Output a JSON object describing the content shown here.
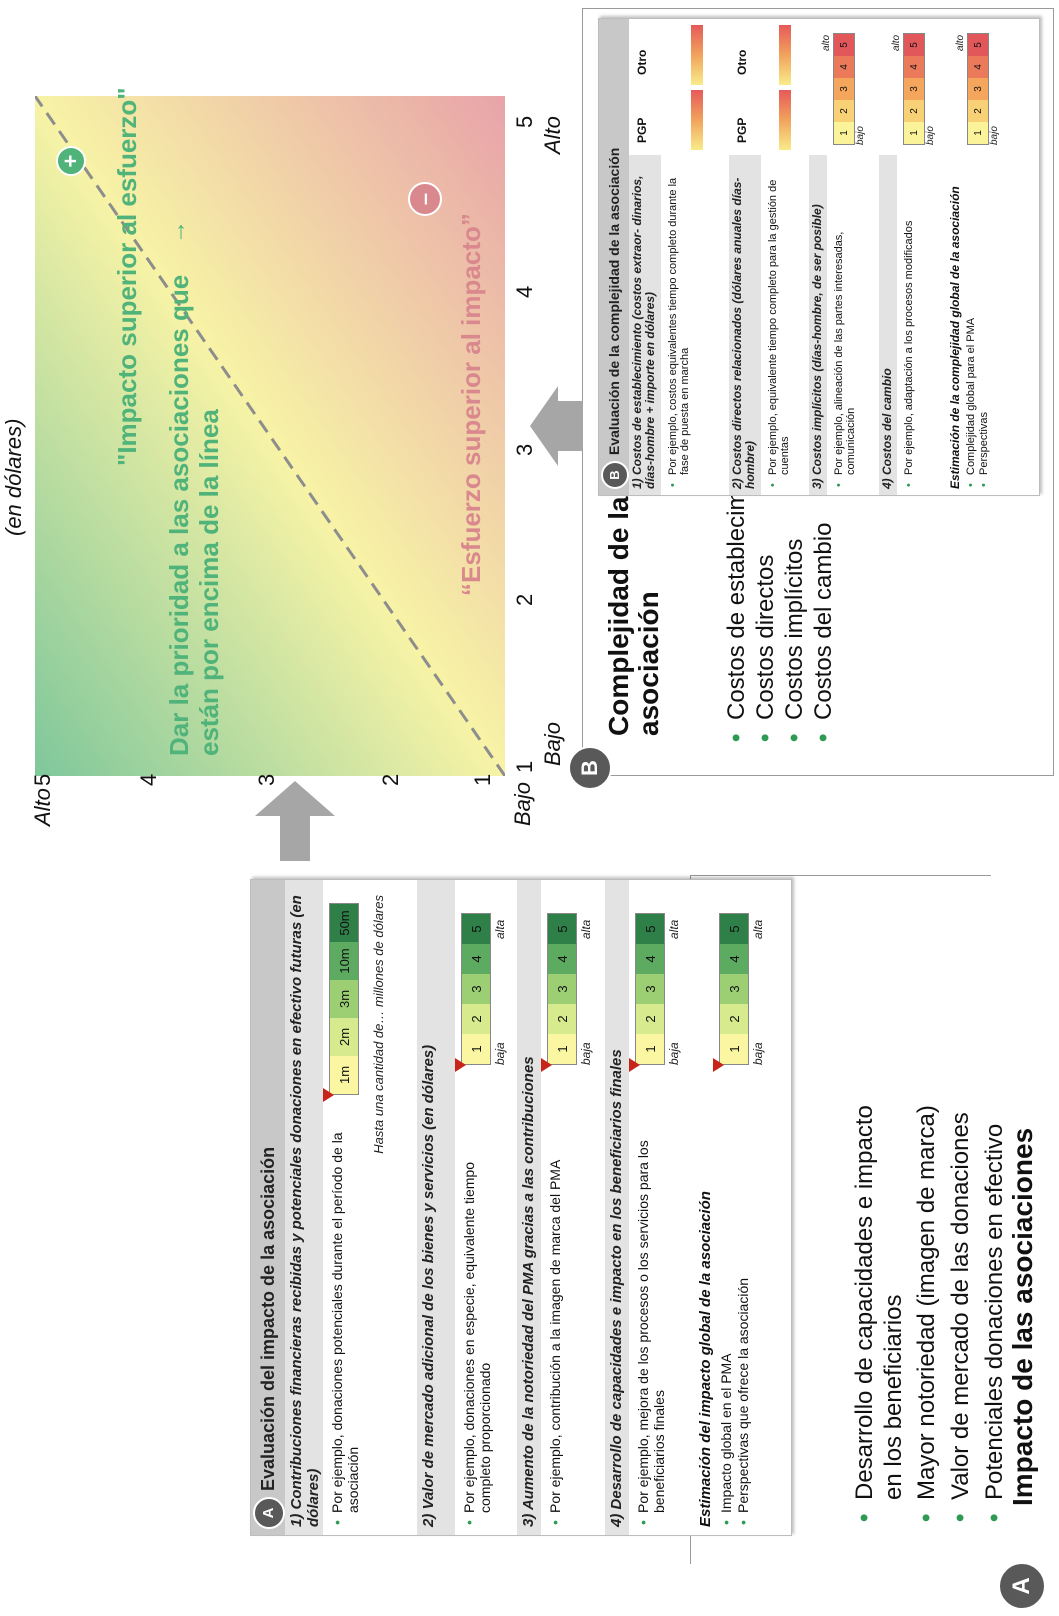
{
  "panel_a": {
    "badge": "A",
    "title": "Impacto de las asociaciones",
    "bullets": [
      "Potenciales donaciones en efectivo",
      "Valor de mercado de las donaciones",
      "Mayor notoriedad (imagen de marca)",
      "Desarrollo de capacidades e impacto en los beneficiarios"
    ],
    "card": {
      "badge": "A",
      "title": "Evaluación del impacto de la asociación",
      "sections": [
        {
          "heading": "1) Contribuciones financieras recibidas y potenciales donaciones en efectivo futuras (en dólares)",
          "bullet": "Por ejemplo, donaciones potenciales durante el período de la asociación",
          "note": "Hasta una cantidad de… millones de dólares",
          "scale": [
            "1m",
            "2m",
            "3m",
            "10m",
            "50m"
          ]
        },
        {
          "heading": "2) Valor de mercado adicional de los bienes y servicios (en dólares)",
          "bullet": "Por ejemplo, donaciones en especie, equivalente tiempo completo proporcionado",
          "scale_low": "baja",
          "scale_high": "alta",
          "scale": [
            "1",
            "2",
            "3",
            "4",
            "5"
          ]
        },
        {
          "heading": "3) Aumento de la notoriedad del PMA gracias a las contribuciones",
          "bullet": "Por ejemplo, contribución a la imagen de marca del PMA",
          "scale_low": "baja",
          "scale_high": "alta",
          "scale": [
            "1",
            "2",
            "3",
            "4",
            "5"
          ]
        },
        {
          "heading": "4) Desarrollo de capacidades e impacto en los beneficiarios finales",
          "bullet": "Por ejemplo, mejora de los procesos o los servicios para los beneficiarios finales",
          "scale_low": "baja",
          "scale_high": "alta",
          "scale": [
            "1",
            "2",
            "3",
            "4",
            "5"
          ]
        }
      ],
      "global": {
        "heading": "Estimación del impacto global de la asociación",
        "bullets": [
          "Impacto global en el PMA",
          "Perspectivas que ofrece la asociación"
        ],
        "scale_low": "baja",
        "scale_high": "alta",
        "scale": [
          "1",
          "2",
          "3",
          "4",
          "5"
        ]
      }
    }
  },
  "chart": {
    "y_high": "Alto",
    "y_low": "Bajo",
    "x_low": "Bajo",
    "x_high": "Alto",
    "x_unit": "(en dólares)",
    "ticks": [
      "1",
      "2",
      "3",
      "4",
      "5"
    ],
    "plus_badge": "+",
    "minus_badge": "–",
    "upper_text": "\"Impacto superior al esfuerzo\"",
    "upper_arrow": "→",
    "upper_sub": "Dar la prioridad a las asociaciones que están por encima de la línea",
    "lower_text": "“Esfuerzo superior al impacto”",
    "colors": {
      "green": "#7fc79b",
      "yellow": "#f7f3a6",
      "pink": "#e8a3a9",
      "green_text": "#4fb37a",
      "pink_text": "#d9898d"
    }
  },
  "panel_b": {
    "badge": "B",
    "title": "Complejidad de la asociación",
    "bullets": [
      "Costos de establecimiento",
      "Costos directos",
      "Costos implícitos",
      "Costos del cambio"
    ],
    "card": {
      "badge": "B",
      "title": "Evaluación de la complejidad de la asociación",
      "col1": "PGP",
      "col2": "Otro",
      "sections": [
        {
          "heading": "1) Costos de establecimiento (costos extraor- dinarios, días-hombre + importe en dólares)",
          "bullet": "Por ejemplo, costos equivalentes tiempo completo durante la fase de puesta en marcha"
        },
        {
          "heading": "2) Costos directos relacionados (dólares anuales días-hombre)",
          "bullet": "Por ejemplo, equivalente tiempo completo para la gestión de cuentas"
        },
        {
          "heading": "3) Costos implícitos (días-hombre, de ser posible)",
          "bullet": "Por ejemplo, alineación de las partes interesadas, comunicación",
          "scale_low": "bajo",
          "scale_high": "alto",
          "scale": [
            "1",
            "2",
            "3",
            "4",
            "5"
          ]
        },
        {
          "heading": "4) Costos del cambio",
          "bullet": "Por ejemplo, adaptación a los procesos modificados",
          "scale_low": "bajo",
          "scale_high": "alto",
          "scale": [
            "1",
            "2",
            "3",
            "4",
            "5"
          ]
        }
      ],
      "global": {
        "heading": "Estimación de la complejidad global de la asociación",
        "bullets": [
          "Complejidad global para el PMA",
          "Perspectivas"
        ],
        "scale_low": "bajo",
        "scale_high": "alto",
        "scale": [
          "1",
          "2",
          "3",
          "4",
          "5"
        ]
      }
    }
  }
}
